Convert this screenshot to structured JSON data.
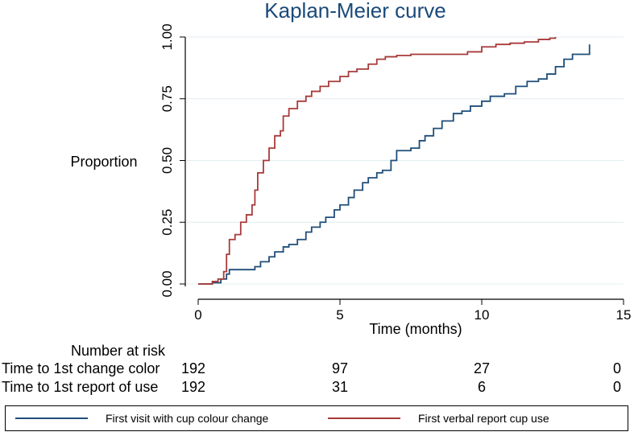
{
  "chart_data": {
    "type": "line",
    "title": "Kaplan-Meier curve",
    "xlabel": "Time (months)",
    "ylabel": "Proportion",
    "xlim": [
      0,
      15
    ],
    "ylim": [
      0,
      1
    ],
    "x_ticks": [
      "0",
      "5",
      "10",
      "15"
    ],
    "y_ticks": [
      "0.00",
      "0.25",
      "0.50",
      "0.75",
      "1.00"
    ],
    "grid": "horizontal",
    "series": [
      {
        "name": "First visit with cup colour change",
        "color": "#1f4e79",
        "step": true,
        "points": [
          [
            0,
            0
          ],
          [
            0.5,
            0.005
          ],
          [
            0.8,
            0.02
          ],
          [
            1,
            0.04
          ],
          [
            1.1,
            0.058
          ],
          [
            1.5,
            0.058
          ],
          [
            1.9,
            0.058
          ],
          [
            2,
            0.07
          ],
          [
            2.2,
            0.09
          ],
          [
            2.5,
            0.11
          ],
          [
            2.7,
            0.13
          ],
          [
            3,
            0.15
          ],
          [
            3.2,
            0.16
          ],
          [
            3.5,
            0.18
          ],
          [
            3.8,
            0.21
          ],
          [
            4,
            0.23
          ],
          [
            4.3,
            0.25
          ],
          [
            4.5,
            0.27
          ],
          [
            4.8,
            0.3
          ],
          [
            5,
            0.32
          ],
          [
            5.3,
            0.35
          ],
          [
            5.5,
            0.38
          ],
          [
            5.8,
            0.41
          ],
          [
            6,
            0.43
          ],
          [
            6.3,
            0.45
          ],
          [
            6.5,
            0.46
          ],
          [
            6.8,
            0.5
          ],
          [
            7,
            0.54
          ],
          [
            7.5,
            0.55
          ],
          [
            7.8,
            0.58
          ],
          [
            8,
            0.6
          ],
          [
            8.3,
            0.63
          ],
          [
            8.6,
            0.66
          ],
          [
            9,
            0.69
          ],
          [
            9.3,
            0.7
          ],
          [
            9.6,
            0.72
          ],
          [
            10,
            0.74
          ],
          [
            10.3,
            0.76
          ],
          [
            10.8,
            0.77
          ],
          [
            11.2,
            0.8
          ],
          [
            11.6,
            0.82
          ],
          [
            12,
            0.83
          ],
          [
            12.3,
            0.85
          ],
          [
            12.6,
            0.88
          ],
          [
            12.9,
            0.91
          ],
          [
            13.2,
            0.93
          ],
          [
            13.5,
            0.93
          ],
          [
            13.8,
            0.97
          ]
        ]
      },
      {
        "name": "First verbal report cup use",
        "color": "#a83a3a",
        "step": true,
        "points": [
          [
            0,
            0
          ],
          [
            0.5,
            0.01
          ],
          [
            0.7,
            0.02
          ],
          [
            0.9,
            0.05
          ],
          [
            1.0,
            0.12
          ],
          [
            1.1,
            0.18
          ],
          [
            1.3,
            0.2
          ],
          [
            1.5,
            0.25
          ],
          [
            1.7,
            0.28
          ],
          [
            1.9,
            0.32
          ],
          [
            2.0,
            0.38
          ],
          [
            2.1,
            0.45
          ],
          [
            2.3,
            0.5
          ],
          [
            2.5,
            0.55
          ],
          [
            2.7,
            0.6
          ],
          [
            2.9,
            0.62
          ],
          [
            3.0,
            0.68
          ],
          [
            3.2,
            0.71
          ],
          [
            3.5,
            0.74
          ],
          [
            3.8,
            0.76
          ],
          [
            4.0,
            0.78
          ],
          [
            4.3,
            0.8
          ],
          [
            4.6,
            0.82
          ],
          [
            5.0,
            0.84
          ],
          [
            5.3,
            0.86
          ],
          [
            5.6,
            0.87
          ],
          [
            6.0,
            0.89
          ],
          [
            6.3,
            0.91
          ],
          [
            6.6,
            0.92
          ],
          [
            7.0,
            0.925
          ],
          [
            7.5,
            0.93
          ],
          [
            8.0,
            0.93
          ],
          [
            9.0,
            0.93
          ],
          [
            9.5,
            0.94
          ],
          [
            10.0,
            0.96
          ],
          [
            10.5,
            0.97
          ],
          [
            11.0,
            0.975
          ],
          [
            11.5,
            0.98
          ],
          [
            12.0,
            0.99
          ],
          [
            12.4,
            0.995
          ],
          [
            12.6,
            1.0
          ]
        ]
      }
    ],
    "number_at_risk": {
      "heading": "Number at risk",
      "rows": [
        {
          "label": "Time to 1st change color",
          "values": [
            "192",
            "97",
            "27",
            "0"
          ]
        },
        {
          "label": "Time to 1st report of use",
          "values": [
            "192",
            "31",
            "6",
            "0"
          ]
        }
      ]
    },
    "legend": [
      {
        "label": "First visit with cup colour change",
        "color": "#1f4e79"
      },
      {
        "label": "First verbal report cup use",
        "color": "#a83a3a"
      }
    ]
  }
}
